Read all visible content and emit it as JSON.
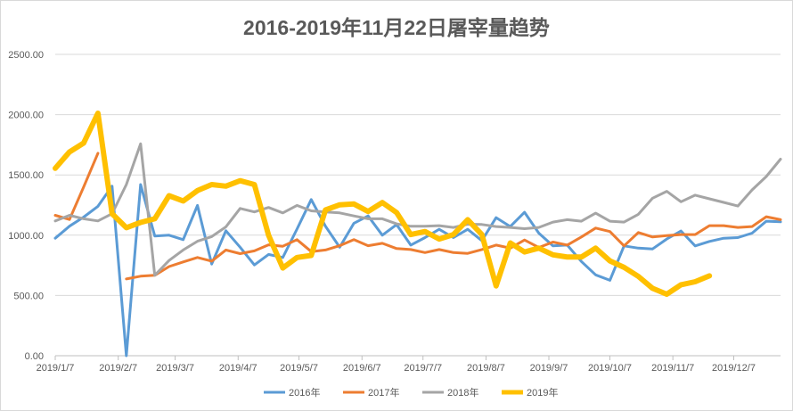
{
  "chart_data": {
    "type": "line",
    "title": "2016-2019年11月22日屠宰量趋势",
    "xlabel": "",
    "ylabel": "",
    "ylim": [
      0,
      2500
    ],
    "yticks": [
      "0.00",
      "500.00",
      "1000.00",
      "1500.00",
      "2000.00",
      "2500.00"
    ],
    "ytick_values": [
      0,
      500,
      1000,
      1500,
      2000,
      2500
    ],
    "x_weeks": 52,
    "xticks": [
      {
        "label": "2019/1/7",
        "week": 0
      },
      {
        "label": "2019/2/7",
        "week": 4.43
      },
      {
        "label": "2019/3/7",
        "week": 8.43
      },
      {
        "label": "2019/4/7",
        "week": 12.86
      },
      {
        "label": "2019/5/7",
        "week": 17.14
      },
      {
        "label": "2019/6/7",
        "week": 21.57
      },
      {
        "label": "2019/7/7",
        "week": 25.86
      },
      {
        "label": "2019/8/7",
        "week": 30.29
      },
      {
        "label": "2019/9/7",
        "week": 34.71
      },
      {
        "label": "2019/10/7",
        "week": 39
      },
      {
        "label": "2019/11/7",
        "week": 43.43
      },
      {
        "label": "2019/12/7",
        "week": 47.71
      }
    ],
    "grid": true,
    "legend_position": "bottom",
    "series": [
      {
        "name": "2016年",
        "color": "#5b9bd5",
        "width": 3,
        "values": [
          975,
          1075,
          1150,
          1240,
          1407,
          0,
          1420,
          993,
          1000,
          963,
          1247,
          760,
          1037,
          900,
          753,
          840,
          815,
          1050,
          1296,
          1074,
          900,
          1099,
          1160,
          1000,
          1088,
          918,
          980,
          1049,
          980,
          1049,
          955,
          1146,
          1072,
          1190,
          1017,
          911,
          918,
          782,
          671,
          626,
          911,
          893,
          886,
          968,
          1035,
          911,
          948,
          975,
          980,
          1017,
          1116,
          1111
        ]
      },
      {
        "name": "2017年",
        "color": "#ed7d31",
        "width": 3,
        "values": [
          1165,
          1130,
          1400,
          1680,
          null,
          637,
          660,
          667,
          740,
          778,
          815,
          785,
          877,
          847,
          870,
          920,
          908,
          963,
          864,
          877,
          913,
          963,
          913,
          933,
          889,
          881,
          856,
          881,
          856,
          849,
          881,
          918,
          893,
          960,
          898,
          943,
          918,
          985,
          1059,
          1030,
          911,
          1022,
          985,
          997,
          1005,
          1005,
          1079,
          1079,
          1064,
          1072,
          1153,
          1129
        ]
      },
      {
        "name": "2018年",
        "color": "#a5a5a5",
        "width": 3,
        "values": [
          1118,
          1165,
          1136,
          1118,
          1178,
          1420,
          1758,
          667,
          790,
          877,
          950,
          988,
          1069,
          1222,
          1193,
          1230,
          1185,
          1247,
          1202,
          1193,
          1185,
          1160,
          1136,
          1136,
          1094,
          1074,
          1074,
          1079,
          1064,
          1091,
          1089,
          1072,
          1064,
          1054,
          1064,
          1109,
          1129,
          1116,
          1183,
          1116,
          1109,
          1173,
          1307,
          1364,
          1277,
          1332,
          1302,
          1272,
          1242,
          1376,
          1487,
          1631
        ]
      },
      {
        "name": "2019年",
        "color": "#ffc000",
        "width": 6,
        "values": [
          1555,
          1691,
          1765,
          2012,
          1178,
          1062,
          1106,
          1136,
          1328,
          1284,
          1370,
          1420,
          1407,
          1452,
          1420,
          1000,
          728,
          815,
          832,
          1210,
          1252,
          1259,
          1197,
          1271,
          1188,
          1005,
          1030,
          968,
          1005,
          1129,
          1005,
          579,
          936,
          861,
          893,
          837,
          819,
          819,
          893,
          787,
          733,
          658,
          559,
          510,
          589,
          614,
          663,
          null,
          null,
          null,
          null,
          null
        ]
      }
    ]
  }
}
